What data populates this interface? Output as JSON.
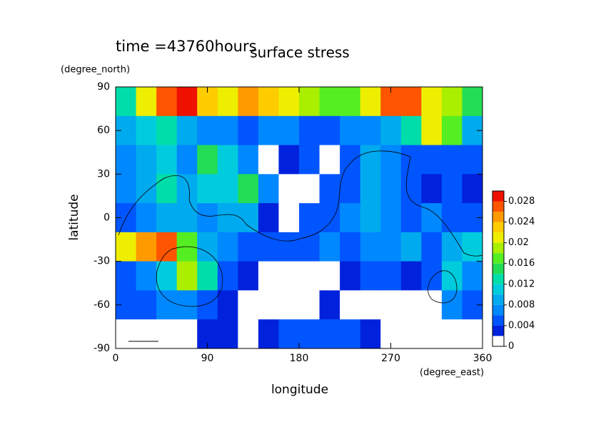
{
  "chart_data": {
    "type": "contourf",
    "title": "surface stress",
    "subtitle": "time =43760hours",
    "xlabel": "longitude",
    "ylabel": "latitude",
    "xunit": "(degree_east)",
    "yunit": "(degree_north)",
    "xlim": [
      0,
      360
    ],
    "ylim": [
      -90,
      90
    ],
    "xticks": [
      0,
      90,
      180,
      270,
      360
    ],
    "yticks": [
      -90,
      -60,
      -30,
      0,
      30,
      60,
      90
    ],
    "x": [
      10,
      30,
      50,
      70,
      90,
      110,
      130,
      150,
      170,
      190,
      210,
      230,
      250,
      270,
      290,
      310,
      330,
      350
    ],
    "y": [
      80,
      60,
      40,
      20,
      0,
      -20,
      -40,
      -60,
      -80
    ],
    "z": [
      [
        0.012,
        0.02,
        0.026,
        0.028,
        0.022,
        0.02,
        0.024,
        0.022,
        0.02,
        0.018,
        0.016,
        0.016,
        0.02,
        0.026,
        0.026,
        0.02,
        0.018,
        0.014
      ],
      [
        0.008,
        0.01,
        0.012,
        0.008,
        0.006,
        0.006,
        0.004,
        0.006,
        0.006,
        0.004,
        0.004,
        0.006,
        0.006,
        0.008,
        0.012,
        0.02,
        0.016,
        0.008
      ],
      [
        0.006,
        0.008,
        0.01,
        0.006,
        0.014,
        0.01,
        0.006,
        0,
        0.002,
        0.004,
        0,
        0.004,
        0.008,
        0.006,
        0.004,
        0.004,
        0.004,
        0.004
      ],
      [
        0.006,
        0.008,
        0.012,
        0.008,
        0.01,
        0.01,
        0.014,
        0.006,
        0,
        0,
        0.004,
        0.004,
        0.008,
        0.006,
        0.004,
        0.002,
        0.004,
        0.002
      ],
      [
        0.004,
        0.006,
        0.008,
        0.008,
        0.006,
        0.008,
        0.008,
        0.002,
        0,
        0.004,
        0.004,
        0.006,
        0.008,
        0.006,
        0.004,
        0.006,
        0.004,
        0.004
      ],
      [
        0.02,
        0.024,
        0.026,
        0.016,
        0.008,
        0.006,
        0.004,
        0.004,
        0.004,
        0.004,
        0.006,
        0.004,
        0.006,
        0.006,
        0.008,
        0.004,
        0.008,
        0.01
      ],
      [
        0.004,
        0.006,
        0.01,
        0.018,
        0.012,
        0.004,
        0.002,
        0,
        0,
        0,
        0,
        0.002,
        0.004,
        0.004,
        0.002,
        0.004,
        0.01,
        0.006
      ],
      [
        0.004,
        0.004,
        0.006,
        0.006,
        0.004,
        0.002,
        0,
        0,
        0,
        0,
        0.002,
        0,
        0,
        0,
        0,
        0,
        0.006,
        0.004
      ],
      [
        0,
        0,
        0,
        0,
        0.002,
        0.002,
        0,
        0.002,
        0.004,
        0.004,
        0.004,
        0.004,
        0.002,
        0,
        0,
        0,
        0,
        0
      ]
    ],
    "levels": [
      0,
      0.002,
      0.004,
      0.006,
      0.008,
      0.01,
      0.012,
      0.014,
      0.016,
      0.018,
      0.02,
      0.022,
      0.024,
      0.026,
      0.028,
      0.03
    ],
    "colors": [
      "#ffffff",
      "#0022dd",
      "#0055ff",
      "#0088ff",
      "#00aaee",
      "#00ccdd",
      "#00ddaa",
      "#22dd55",
      "#55ee22",
      "#aaee00",
      "#eeee00",
      "#ffcc00",
      "#ff9900",
      "#ff5500",
      "#ee1100"
    ],
    "cticks": [
      0,
      0.004,
      0.008,
      0.012,
      0.016,
      0.02,
      0.024,
      0.028
    ]
  }
}
